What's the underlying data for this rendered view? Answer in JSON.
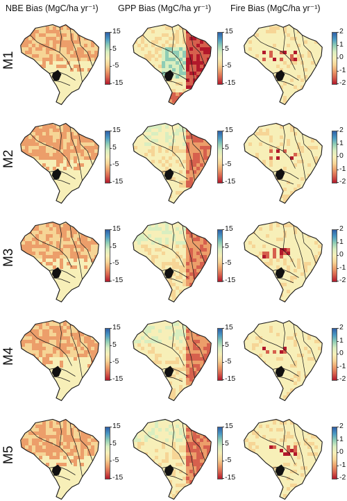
{
  "columns": [
    {
      "key": "nbe",
      "title": "NBE Bias (MgC/ha yr⁻¹)"
    },
    {
      "key": "gpp",
      "title": "GPP Bias (MgC/ha yr⁻¹)"
    },
    {
      "key": "fire",
      "title": "Fire Bias (MgC/ha yr⁻¹)"
    }
  ],
  "rows": [
    "M1",
    "M2",
    "M3",
    "M4",
    "M5"
  ],
  "colorbars": {
    "nbe": {
      "ticks": [
        "15",
        "5",
        "-5",
        "-15"
      ],
      "range": [
        -15,
        15
      ]
    },
    "gpp": {
      "ticks": [
        "15",
        "5",
        "-5",
        "-15"
      ],
      "range": [
        -15,
        15
      ]
    },
    "fire": {
      "ticks": [
        "2",
        "1",
        "0",
        "-1",
        "-2"
      ],
      "range": [
        -2,
        2
      ]
    }
  },
  "colors": {
    "scale": [
      "#b2182b",
      "#d6604d",
      "#ec9e6a",
      "#f6d596",
      "#f7efb8",
      "#d9eec0",
      "#8fcdb5",
      "#4a98c3",
      "#2e5fa6"
    ],
    "land": "#f6e7a6",
    "outline": "#1a1a1a",
    "wetland": "#111111"
  },
  "map_patterns": {
    "nbe": "orange band across the north and Amazon interior, pale yellow south",
    "gpp": "red-orange bias in the east and south, green-tinted interior for M1; milder orange elsewhere",
    "fire": "mostly pale, red-orange cells along the southern Amazon arc of deforestation"
  }
}
